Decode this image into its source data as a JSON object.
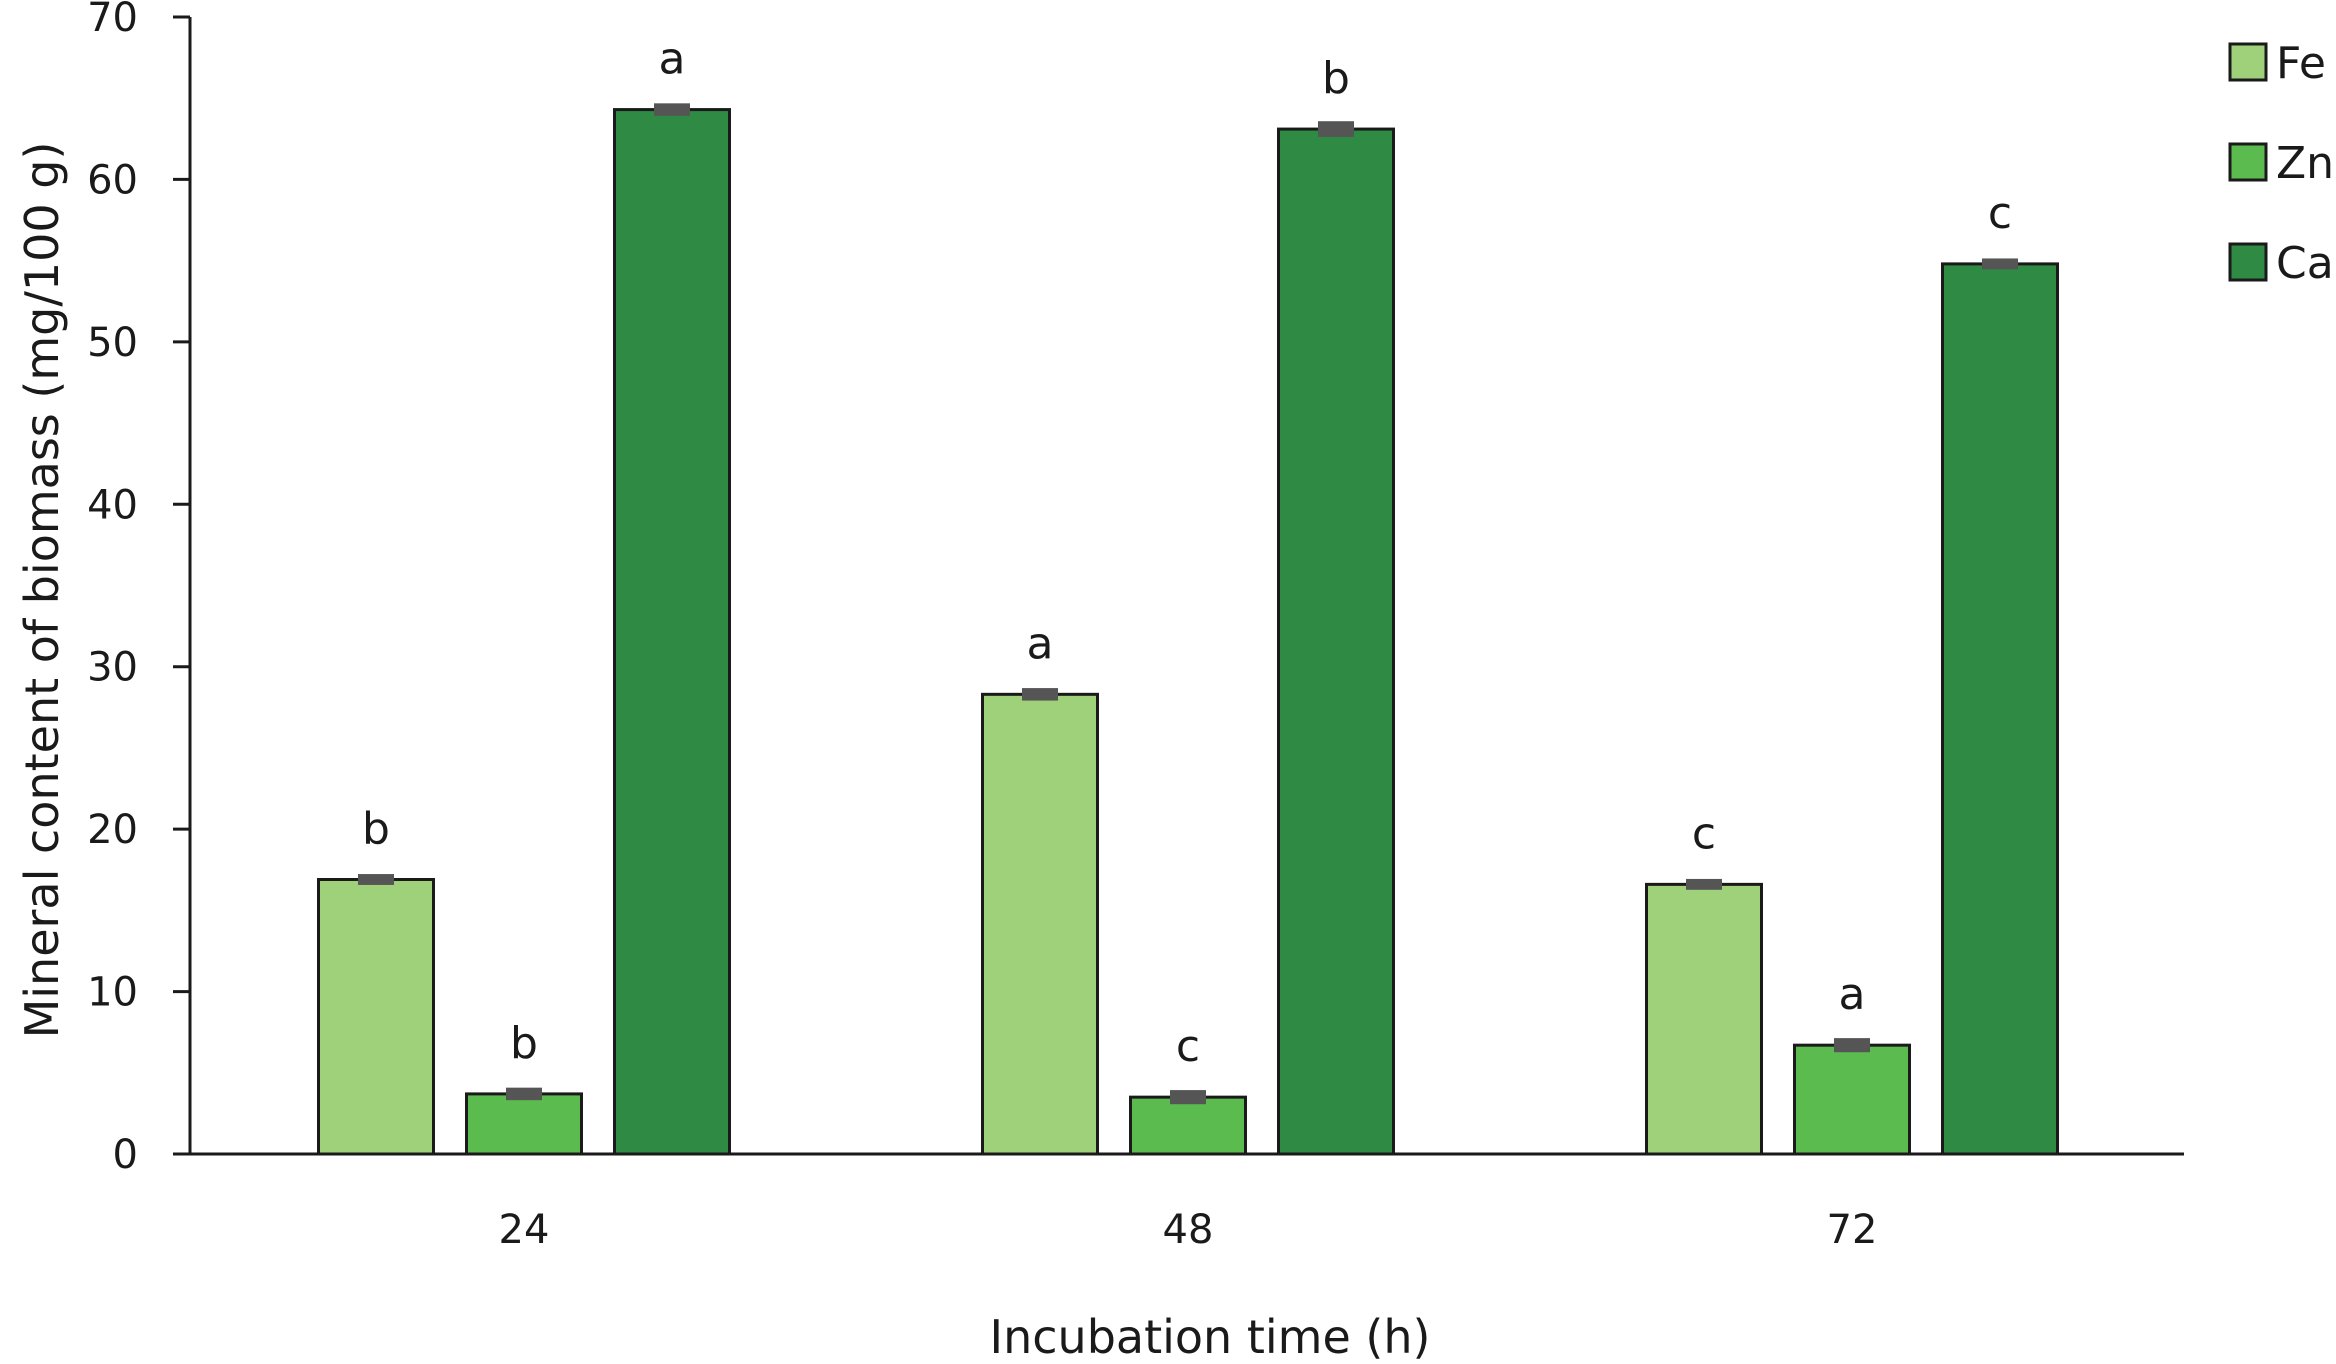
{
  "chart_data": {
    "type": "bar",
    "title": "",
    "xlabel": "Incubation time (h)",
    "ylabel": "Mineral content of biomass (mg/100 g)",
    "ylim": [
      0,
      70
    ],
    "yticks": [
      0,
      10,
      20,
      30,
      40,
      50,
      60,
      70
    ],
    "categories": [
      "24",
      "48",
      "72"
    ],
    "grid": false,
    "legend_position": "top-right",
    "series": [
      {
        "name": "Fe",
        "color": "#9fd07a",
        "values": [
          16.9,
          28.3,
          16.6
        ],
        "errors": [
          0.15,
          0.2,
          0.15
        ],
        "letters": [
          "b",
          "a",
          "c"
        ]
      },
      {
        "name": "Zn",
        "color": "#5cbb4e",
        "values": [
          3.7,
          3.5,
          6.7
        ],
        "errors": [
          0.2,
          0.25,
          0.25
        ],
        "letters": [
          "b",
          "c",
          "a"
        ]
      },
      {
        "name": "Ca",
        "color": "#2f8b44",
        "values": [
          64.3,
          63.1,
          54.8
        ],
        "errors": [
          0.2,
          0.3,
          0.15
        ],
        "letters": [
          "a",
          "b",
          "c"
        ]
      }
    ]
  }
}
